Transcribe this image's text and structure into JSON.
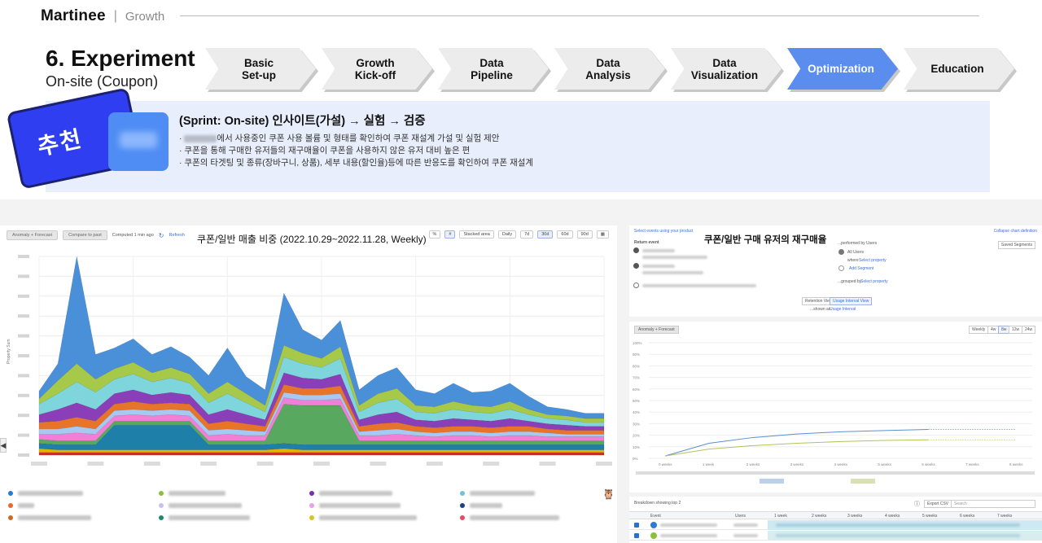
{
  "header": {
    "logo": "Martinee",
    "separator": "|",
    "section": "Growth"
  },
  "title": {
    "main": "6. Experiment",
    "sub": "On-site (Coupon)"
  },
  "steps": [
    {
      "label": "Basic\nSet-up",
      "active": false
    },
    {
      "label": "Growth\nKick-off",
      "active": false
    },
    {
      "label": "Data\nPipeline",
      "active": false
    },
    {
      "label": "Data\nAnalysis",
      "active": false
    },
    {
      "label": "Data\nVisualization",
      "active": false
    },
    {
      "label": "Optimization",
      "active": true
    },
    {
      "label": "Education",
      "active": false
    }
  ],
  "insight": {
    "badge": "추천",
    "title": "(Sprint: On-site) 인사이트(가설) → 실험 → 검증",
    "bullets": [
      "에서 사용중인 쿠폰 사용 볼륨 및 형태를 확인하여 쿠폰 재설계 가설 및 실험 제안",
      "쿠폰을 통해 구매한 유저들의 재구매율이 쿠폰을 사용하지 않은 유저 대비 높은 편",
      "쿠폰의 타겟팅 및 종류(장바구니, 상품), 세부 내용(할인율)등에 따른 반응도를 확인하여 쿠폰 재설계"
    ],
    "bullet_prefix": "·"
  },
  "left_panel": {
    "title": "쿠폰/일반 매출 비중 (2022.10.29~2022.11.28, Weekly)",
    "toolbar": {
      "anomaly": "Anomaly + Forecast",
      "compare": "Compare to past",
      "computed": "Computed 1 min ago",
      "refresh": "Refresh"
    },
    "controls": {
      "percent": "%",
      "hash": "#",
      "chart_type": "Stacked area",
      "interval": "Daily",
      "ranges": [
        "7d",
        "30d",
        "60d",
        "90d"
      ],
      "active_range": "30d"
    },
    "y_axis_label": "Property Sum"
  },
  "chart_data": {
    "type": "area",
    "title": "쿠폰/일반 매출 비중 (2022.10.29~2022.11.28, Weekly)",
    "stacked": true,
    "x_points": 31,
    "grid": true,
    "series": [
      {
        "color": "#c9302c",
        "values": [
          2,
          2,
          2,
          2,
          2,
          2,
          2,
          2,
          2,
          2,
          2,
          2,
          2,
          2,
          2,
          2,
          2,
          2,
          2,
          2,
          2,
          2,
          2,
          2,
          2,
          2,
          2,
          2,
          2,
          2,
          2
        ]
      },
      {
        "color": "#e0b400",
        "values": [
          3,
          2,
          2,
          2,
          2,
          2,
          2,
          2,
          2,
          2,
          2,
          2,
          2,
          3,
          2,
          2,
          2,
          2,
          2,
          2,
          2,
          2,
          2,
          2,
          2,
          2,
          2,
          2,
          2,
          2,
          2
        ]
      },
      {
        "color": "#1e7fa8",
        "values": [
          4,
          4,
          4,
          4,
          19,
          19,
          19,
          19,
          19,
          4,
          4,
          4,
          4,
          4,
          4,
          4,
          4,
          4,
          4,
          4,
          4,
          4,
          4,
          4,
          4,
          4,
          4,
          4,
          4,
          4,
          4
        ]
      },
      {
        "color": "#59a860",
        "values": [
          3,
          3,
          3,
          3,
          3,
          3,
          3,
          3,
          3,
          3,
          3,
          3,
          3,
          30,
          30,
          30,
          30,
          3,
          3,
          3,
          3,
          3,
          3,
          3,
          3,
          3,
          3,
          3,
          3,
          3,
          3
        ]
      },
      {
        "color": "#f07fd8",
        "values": [
          4,
          5,
          6,
          5,
          4,
          5,
          4,
          5,
          4,
          4,
          5,
          4,
          4,
          5,
          4,
          4,
          5,
          4,
          4,
          5,
          4,
          3,
          4,
          4,
          3,
          4,
          4,
          3,
          3,
          3,
          3
        ]
      },
      {
        "color": "#a7c8f0",
        "values": [
          4,
          4,
          5,
          4,
          4,
          4,
          4,
          4,
          4,
          4,
          4,
          4,
          3,
          4,
          4,
          4,
          4,
          3,
          4,
          4,
          3,
          3,
          3,
          3,
          3,
          3,
          3,
          3,
          2,
          2,
          2
        ]
      },
      {
        "color": "#e8742a",
        "values": [
          5,
          6,
          7,
          6,
          5,
          6,
          5,
          5,
          5,
          5,
          6,
          5,
          4,
          6,
          5,
          5,
          6,
          4,
          5,
          5,
          4,
          4,
          4,
          4,
          4,
          4,
          4,
          3,
          3,
          3,
          3
        ]
      },
      {
        "color": "#8a3fb8",
        "values": [
          6,
          9,
          11,
          9,
          8,
          9,
          7,
          8,
          7,
          7,
          9,
          7,
          5,
          9,
          8,
          7,
          9,
          5,
          7,
          8,
          5,
          5,
          6,
          5,
          5,
          6,
          4,
          4,
          4,
          3,
          3
        ]
      },
      {
        "color": "#7ed6dc",
        "values": [
          8,
          12,
          16,
          13,
          11,
          12,
          10,
          11,
          9,
          9,
          12,
          9,
          6,
          12,
          11,
          9,
          12,
          6,
          9,
          10,
          6,
          6,
          7,
          6,
          6,
          7,
          5,
          4,
          4,
          3,
          3
        ]
      },
      {
        "color": "#a6c94a",
        "values": [
          4,
          10,
          14,
          10,
          8,
          9,
          7,
          8,
          7,
          7,
          9,
          7,
          5,
          9,
          8,
          7,
          9,
          5,
          7,
          8,
          5,
          5,
          6,
          5,
          5,
          6,
          4,
          3,
          3,
          3,
          3
        ]
      },
      {
        "color": "#4a90d9",
        "values": [
          6,
          13,
          82,
          19,
          16,
          18,
          14,
          16,
          13,
          14,
          26,
          13,
          12,
          40,
          18,
          14,
          20,
          12,
          14,
          16,
          12,
          10,
          14,
          10,
          12,
          14,
          10,
          6,
          5,
          4,
          4
        ]
      }
    ]
  },
  "legend": {
    "rows": [
      [
        "#2a7bd4",
        "#8bbf3c",
        "#7a2fb0",
        "#6cc4db"
      ],
      [
        "#e86a2a",
        "#c8c0f0",
        "#e8a0e8",
        "#1e3f8a"
      ],
      [
        "#c96a2a",
        "#1a8a6a",
        "#e0c020",
        "#e84a60"
      ]
    ]
  },
  "right_top": {
    "title": "쿠폰/일반 구매 유저의 재구매율",
    "select_events": "Select events using your product",
    "collapse": "Collapse chart definition",
    "return_event": "Return event",
    "performed_by": "...performed by Users",
    "all_users": "All Users",
    "where": "where",
    "select_property": "Select property",
    "add_segment": "Add Segment",
    "grouped_by": "...grouped by",
    "saved_segments": "Saved Segments",
    "retention_view": "Retention View",
    "usage_interval_view": "Usage Interval View",
    "shown_as": "...shown as",
    "usage_interval": "Usage Interval"
  },
  "right_mid": {
    "anomaly": "Anomaly + Forecast",
    "interval": "Weekly",
    "ranges": [
      "4w",
      "8w",
      "12w",
      "24w"
    ],
    "active_range": "8w",
    "y_ticks": [
      "100%",
      "90%",
      "80%",
      "70%",
      "60%",
      "50%",
      "40%",
      "30%",
      "20%",
      "10%",
      "0%"
    ],
    "x_ticks": [
      "0 weeks",
      "1 week",
      "2 weeks",
      "3 weeks",
      "4 weeks",
      "5 weeks",
      "6 weeks",
      "7 weeks",
      "8 weeks"
    ],
    "series_colors": [
      "#5b8fd0",
      "#b5c25a"
    ]
  },
  "table": {
    "title": "Breakdown showing top 2",
    "export": "Export CSV",
    "search": "Search",
    "headers": [
      "Event",
      "Users",
      "1 week",
      "2 weeks",
      "3 weeks",
      "4 weeks",
      "5 weeks",
      "6 weeks",
      "7 weeks"
    ]
  }
}
